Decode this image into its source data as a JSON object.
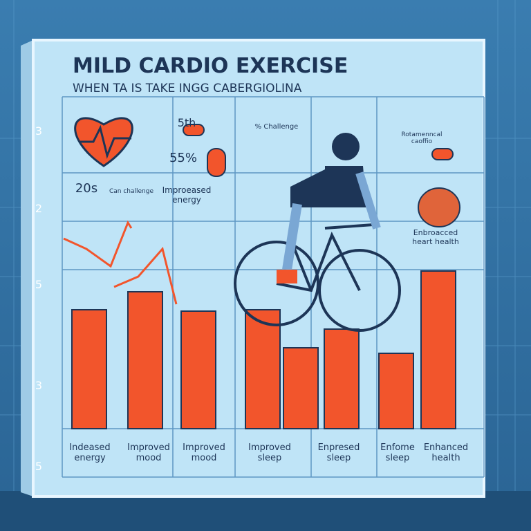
{
  "chart_data": {
    "type": "bar",
    "title": "MILD CARDIO EXERCISE",
    "subtitle": "WHEN TA IS TAKE INGG CABERGIOLINA",
    "categories": [
      "Indeased\nenergy",
      "Improved\nmood",
      "Improved\nmood",
      "Improved\nsleep",
      "Enpresed\nsleep",
      "Enfome\nsleep",
      "Enhanced\nhealth",
      null
    ],
    "values": [
      172,
      198,
      170,
      172,
      117,
      144,
      109,
      228
    ],
    "color": "#f2552c",
    "ylim": [
      0,
      250
    ],
    "side_labels": [
      "3",
      "2",
      "5",
      "3",
      "5"
    ],
    "annotations": [
      "5th",
      "55%",
      "20s",
      "Can challenge",
      "Improeased\nenergy",
      "% Challenge",
      "Rotamenncal\ncaoffio",
      "Enbroacced\nheart health"
    ]
  }
}
